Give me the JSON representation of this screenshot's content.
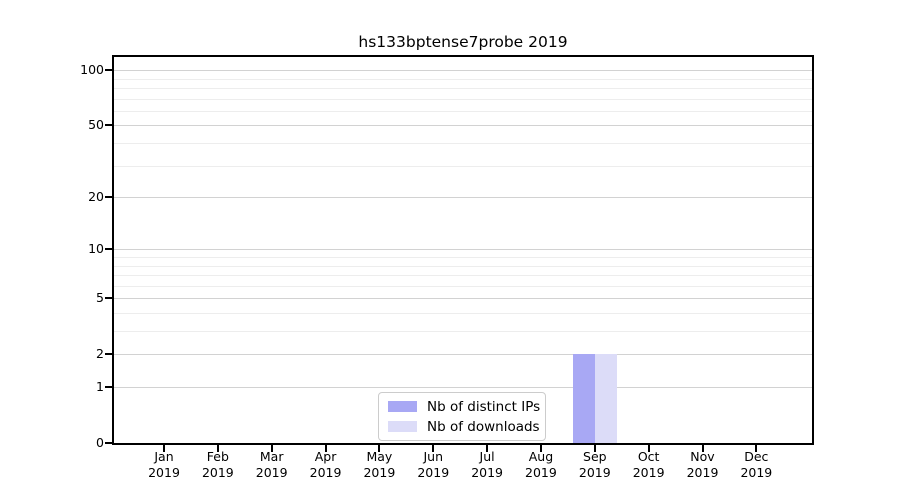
{
  "chart_data": {
    "type": "bar",
    "title": "hs133bptense7probe 2019",
    "year_label": "2019",
    "categories": [
      "Jan",
      "Feb",
      "Mar",
      "Apr",
      "May",
      "Jun",
      "Jul",
      "Aug",
      "Sep",
      "Oct",
      "Nov",
      "Dec"
    ],
    "series": [
      {
        "name": "Nb of distinct IPs",
        "color": "#a8a8f4",
        "values": [
          0,
          0,
          0,
          0,
          0,
          0,
          0,
          0,
          2,
          0,
          0,
          0
        ]
      },
      {
        "name": "Nb of downloads",
        "color": "#dcdcf8",
        "values": [
          0,
          0,
          0,
          0,
          0,
          0,
          0,
          0,
          2,
          0,
          0,
          0
        ]
      }
    ],
    "yticks": [
      0,
      1,
      2,
      5,
      10,
      20,
      50,
      100
    ],
    "minor_yticks": [
      3,
      4,
      6,
      7,
      8,
      9,
      30,
      40,
      60,
      70,
      80,
      90
    ],
    "ylim": [
      0,
      118
    ],
    "scale": "log1p",
    "grid": true,
    "legend_position": "bottom-center",
    "colors": {
      "major_grid": "#d2d2d2",
      "minor_grid": "#ededed",
      "axis": "#000000",
      "background": "#ffffff",
      "text": "#000000"
    }
  }
}
